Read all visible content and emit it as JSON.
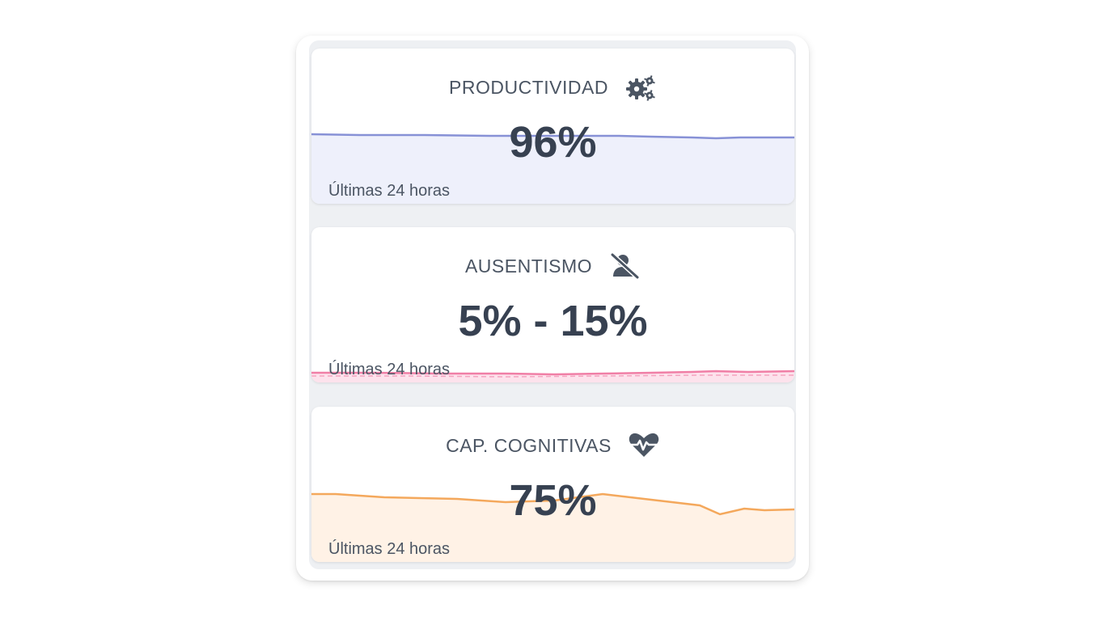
{
  "cards": [
    {
      "title": "PRODUCTIVIDAD",
      "icon": "gears-icon",
      "value": "96%",
      "caption": "Últimas 24 horas",
      "line_color": "#8791d6",
      "fill_color": "#eef0fb"
    },
    {
      "title": "AUSENTISMO",
      "icon": "user-slash-icon",
      "value": "5% - 15%",
      "caption": "Últimas 24 horas",
      "line_color": "#f07fa6",
      "fill_color": "#fde2ec"
    },
    {
      "title": "CAP. COGNITIVAS",
      "icon": "heartbeat-icon",
      "value": "75%",
      "caption": "Últimas 24 horas",
      "line_color": "#f4a85c",
      "fill_color": "#fff2e6"
    }
  ]
}
